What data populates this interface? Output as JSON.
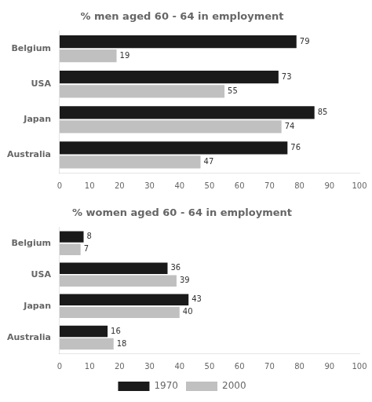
{
  "chart_data": [
    {
      "type": "bar",
      "orientation": "horizontal",
      "title": "% men aged 60 - 64 in employment",
      "categories": [
        "Belgium",
        "USA",
        "Japan",
        "Australia"
      ],
      "series": [
        {
          "name": "1970",
          "color": "#1a1a1a",
          "values": [
            79,
            73,
            85,
            76
          ]
        },
        {
          "name": "2000",
          "color": "#c0c0c0",
          "values": [
            19,
            55,
            74,
            47
          ]
        }
      ],
      "xlim": [
        0,
        100
      ],
      "xticks": [
        0,
        10,
        20,
        30,
        40,
        50,
        60,
        70,
        80,
        90,
        100
      ],
      "grid": false,
      "data_labels": true
    },
    {
      "type": "bar",
      "orientation": "horizontal",
      "title": "% women aged 60 - 64 in employment",
      "categories": [
        "Belgium",
        "USA",
        "Japan",
        "Australia"
      ],
      "series": [
        {
          "name": "1970",
          "color": "#1a1a1a",
          "values": [
            8,
            36,
            43,
            16
          ]
        },
        {
          "name": "2000",
          "color": "#c0c0c0",
          "values": [
            7,
            39,
            40,
            18
          ]
        }
      ],
      "xlim": [
        0,
        100
      ],
      "xticks": [
        0,
        10,
        20,
        30,
        40,
        50,
        60,
        70,
        80,
        90,
        100
      ],
      "grid": false,
      "data_labels": true,
      "legend": "bottom"
    }
  ]
}
